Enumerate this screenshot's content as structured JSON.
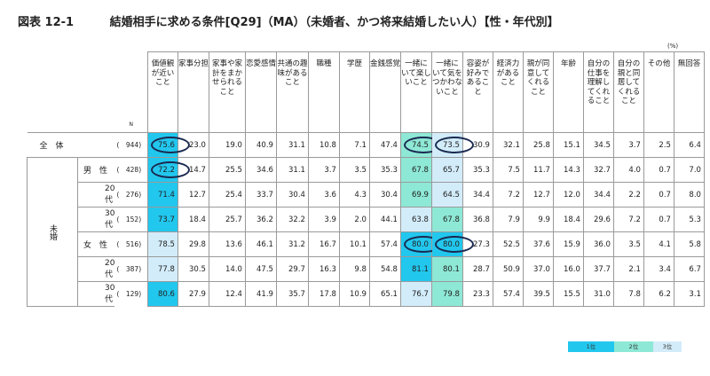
{
  "title_fig": "図表 12-1",
  "title_text": "結婚相手に求める条件[Q29]（MA）（未婚者、かつ将来結婚したい人）【性・年代別】",
  "unit": "(%)",
  "n_label": "N",
  "side_label": "未婚",
  "legend": [
    "1位",
    "2位",
    "3位"
  ],
  "chart_data": {
    "type": "table",
    "columns": [
      "価値観が近いこと",
      "家事分担",
      "家事や家計をまかせられること",
      "恋愛感情",
      "共通の趣味があること",
      "職種",
      "学歴",
      "金銭感覚",
      "一緒にいて楽しいこと",
      "一緒にいて気をつかわないこと",
      "容姿が好みであること",
      "経済力があること",
      "親が同意してくれること",
      "年齢",
      "自分の仕事を理解してくれること",
      "自分の親と同居してくれること",
      "その他",
      "無回答"
    ],
    "rows": [
      {
        "label": "全　体",
        "n": "(　944)",
        "values": [
          75.6,
          23.0,
          19.0,
          40.9,
          31.1,
          10.8,
          7.1,
          47.4,
          74.5,
          73.5,
          30.9,
          32.1,
          25.8,
          15.1,
          34.5,
          3.7,
          2.5,
          6.4
        ],
        "rank1": [
          0
        ],
        "rank2": [
          8
        ],
        "rank3": [
          9
        ],
        "circled": [
          0,
          8,
          9
        ]
      },
      {
        "label": "男　性",
        "n": "(　428)",
        "values": [
          72.2,
          14.7,
          25.5,
          34.6,
          31.1,
          3.7,
          3.5,
          35.3,
          67.8,
          65.7,
          35.3,
          7.5,
          11.7,
          14.3,
          32.7,
          4.0,
          0.7,
          7.0
        ],
        "rank1": [
          0
        ],
        "rank2": [
          8
        ],
        "rank3": [
          9
        ],
        "circled": [
          0
        ]
      },
      {
        "label": "20代",
        "n": "(　276)",
        "values": [
          71.4,
          12.7,
          25.4,
          33.7,
          30.4,
          3.6,
          4.3,
          30.4,
          69.9,
          64.5,
          34.4,
          7.2,
          12.7,
          12.0,
          34.4,
          2.2,
          0.7,
          8.0
        ],
        "rank1": [
          0
        ],
        "rank2": [
          8
        ],
        "rank3": [
          9
        ],
        "circled": []
      },
      {
        "label": "30代",
        "n": "(　152)",
        "values": [
          73.7,
          18.4,
          25.7,
          36.2,
          32.2,
          3.9,
          2.0,
          44.1,
          63.8,
          67.8,
          36.8,
          7.9,
          9.9,
          18.4,
          29.6,
          7.2,
          0.7,
          5.3
        ],
        "rank1": [
          0
        ],
        "rank2": [
          9
        ],
        "rank3": [
          8
        ],
        "circled": []
      },
      {
        "label": "女　性",
        "n": "(　516)",
        "values": [
          78.5,
          29.8,
          13.6,
          46.1,
          31.2,
          16.7,
          10.1,
          57.4,
          80.0,
          80.0,
          27.3,
          52.5,
          37.6,
          15.9,
          36.0,
          3.5,
          4.1,
          5.8
        ],
        "rank1": [
          8,
          9
        ],
        "rank2": [],
        "rank3": [
          0
        ],
        "circled": [
          8,
          9
        ]
      },
      {
        "label": "20代",
        "n": "(　387)",
        "values": [
          77.8,
          30.5,
          14.0,
          47.5,
          29.7,
          16.3,
          9.8,
          54.8,
          81.1,
          80.1,
          28.7,
          50.9,
          37.0,
          16.0,
          37.7,
          2.1,
          3.4,
          6.7
        ],
        "rank1": [
          8
        ],
        "rank2": [
          9
        ],
        "rank3": [
          0
        ],
        "circled": []
      },
      {
        "label": "30代",
        "n": "(　129)",
        "values": [
          80.6,
          27.9,
          12.4,
          41.9,
          35.7,
          17.8,
          10.9,
          65.1,
          76.7,
          79.8,
          23.3,
          57.4,
          39.5,
          15.5,
          31.0,
          7.8,
          6.2,
          3.1
        ],
        "rank1": [
          0
        ],
        "rank2": [
          9
        ],
        "rank3": [
          8
        ],
        "circled": []
      }
    ]
  }
}
